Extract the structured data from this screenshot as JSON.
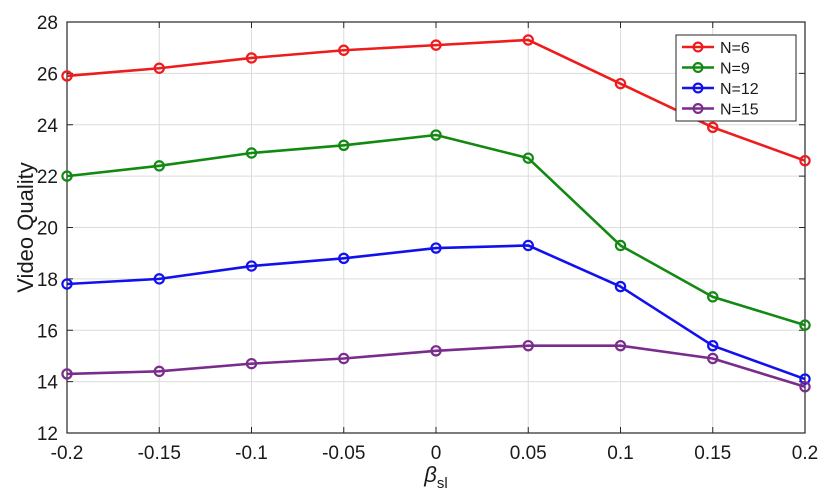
{
  "chart_data": {
    "type": "line",
    "title": "",
    "xlabel": "β",
    "xlabel_subscript": "sl",
    "ylabel": "Video Quality",
    "xlim": [
      -0.2,
      0.2
    ],
    "ylim": [
      12,
      28
    ],
    "x": [
      -0.2,
      -0.15,
      -0.1,
      -0.05,
      0,
      0.05,
      0.1,
      0.15,
      0.2
    ],
    "xticks": [
      "-0.2",
      "-0.15",
      "-0.1",
      "-0.05",
      "0",
      "0.05",
      "0.1",
      "0.15",
      "0.2"
    ],
    "yticks": [
      "12",
      "14",
      "16",
      "18",
      "20",
      "22",
      "24",
      "26",
      "28"
    ],
    "grid": true,
    "legend_position": "top-right",
    "series": [
      {
        "name": "N=6",
        "color": "#ee1c1c",
        "values": [
          25.9,
          26.2,
          26.6,
          26.9,
          27.1,
          27.3,
          25.6,
          23.9,
          22.6
        ]
      },
      {
        "name": "N=9",
        "color": "#128a12",
        "values": [
          22.0,
          22.4,
          22.9,
          23.2,
          23.6,
          22.7,
          19.3,
          17.3,
          16.2
        ]
      },
      {
        "name": "N=12",
        "color": "#1111ee",
        "values": [
          17.8,
          18.0,
          18.5,
          18.8,
          19.2,
          19.3,
          17.7,
          15.4,
          14.1
        ]
      },
      {
        "name": "N=15",
        "color": "#7a2c8c",
        "values": [
          14.3,
          14.4,
          14.7,
          14.9,
          15.2,
          15.4,
          15.4,
          14.9,
          13.8
        ]
      }
    ]
  }
}
